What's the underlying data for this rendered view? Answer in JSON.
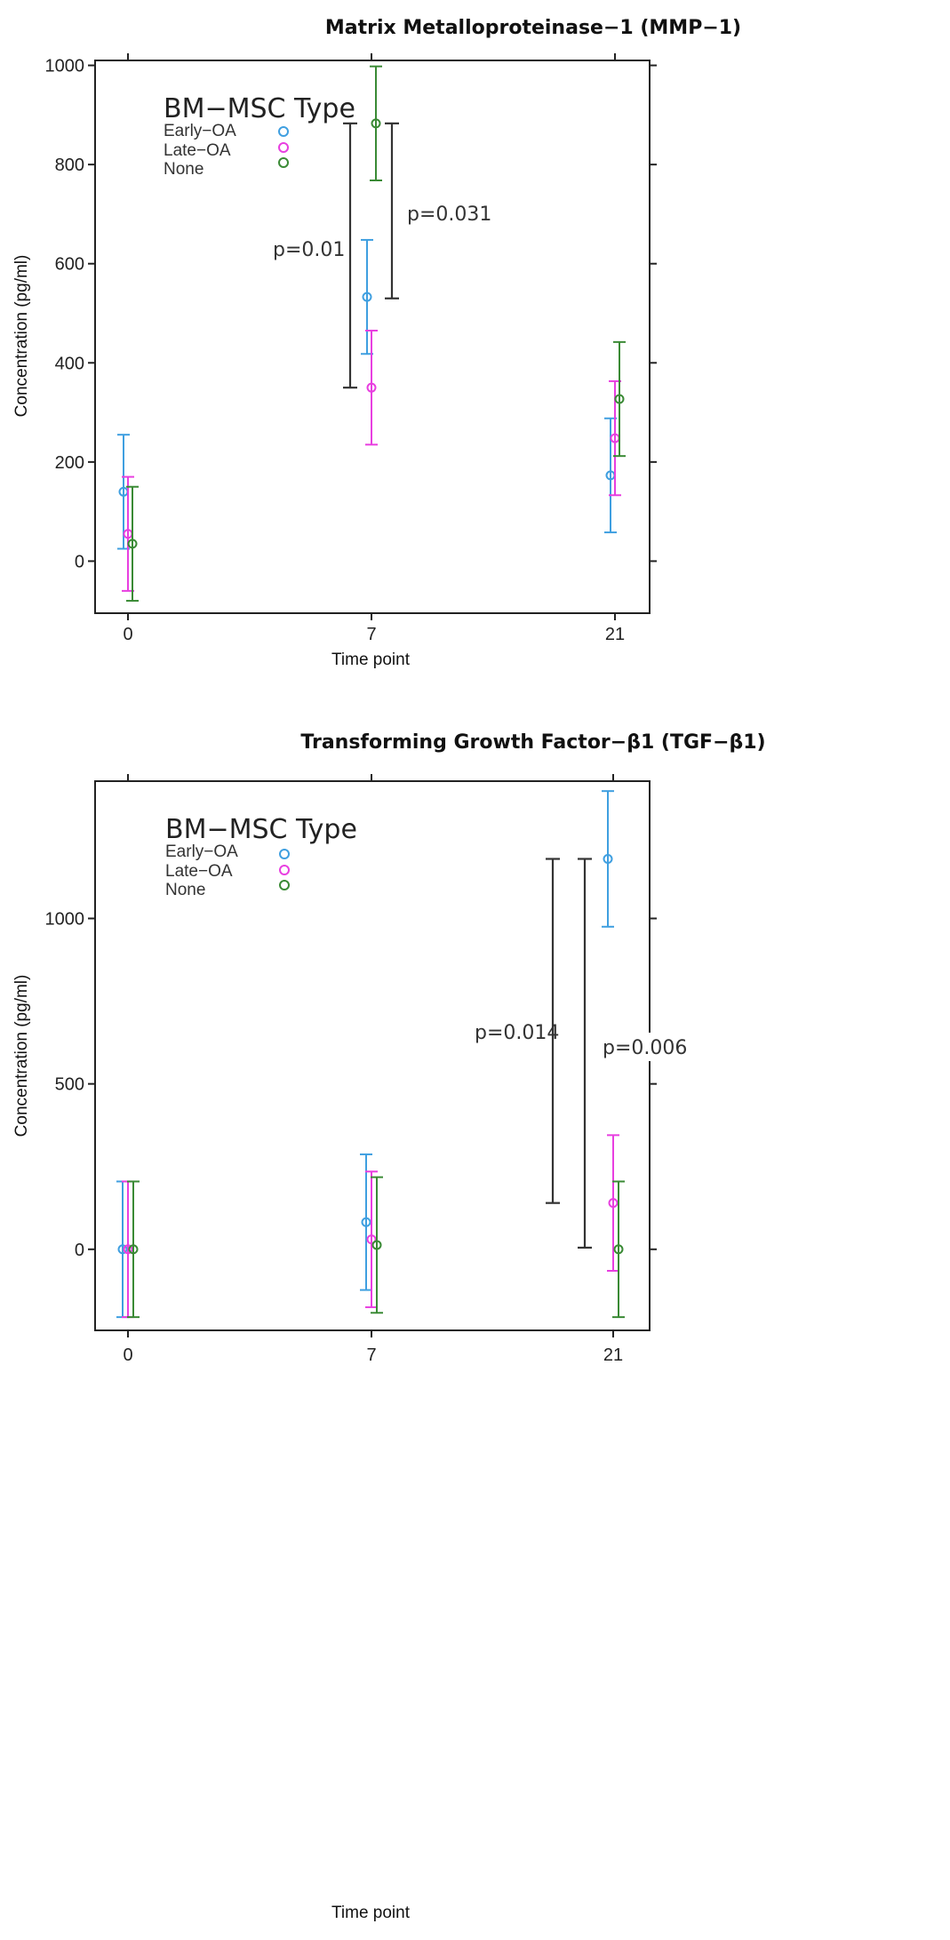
{
  "figure": {
    "x_axis_label": "Time point",
    "y_axis_label": "Concentration (pg/ml)"
  },
  "legend": {
    "title": "BM−MSC Type",
    "items": [
      {
        "label": "Early−OA",
        "color": "#3f9fe0"
      },
      {
        "label": "Late−OA",
        "color": "#e83fe0"
      },
      {
        "label": "None",
        "color": "#3a8a35"
      }
    ]
  },
  "chart_data": [
    {
      "type": "scatter",
      "title": "Matrix Metalloproteinase−1 (MMP−1)",
      "xlabel": "Time point",
      "ylabel": "Concentration (pg/ml)",
      "x_categories": [
        "0",
        "7",
        "21"
      ],
      "ylim": [
        -105,
        1010
      ],
      "yticks": [
        0,
        200,
        400,
        600,
        800,
        1000
      ],
      "series": [
        {
          "name": "Early−OA",
          "color": "#3f9fe0",
          "points": [
            {
              "x": "0",
              "mean": 140,
              "lo": 25,
              "hi": 255
            },
            {
              "x": "7",
              "mean": 533,
              "lo": 418,
              "hi": 648
            },
            {
              "x": "21",
              "mean": 173,
              "lo": 58,
              "hi": 288
            }
          ]
        },
        {
          "name": "Late−OA",
          "color": "#e83fe0",
          "points": [
            {
              "x": "0",
              "mean": 55,
              "lo": -60,
              "hi": 170
            },
            {
              "x": "7",
              "mean": 350,
              "lo": 235,
              "hi": 465
            },
            {
              "x": "21",
              "mean": 248,
              "lo": 133,
              "hi": 363
            }
          ]
        },
        {
          "name": "None",
          "color": "#3a8a35",
          "points": [
            {
              "x": "0",
              "mean": 35,
              "lo": -80,
              "hi": 150
            },
            {
              "x": "7",
              "mean": 883,
              "lo": 768,
              "hi": 998
            },
            {
              "x": "21",
              "mean": 327,
              "lo": 212,
              "hi": 442
            }
          ]
        }
      ],
      "comparisons": [
        {
          "label": "p=0.01",
          "x": "7",
          "lo": 350,
          "hi": 883
        },
        {
          "label": "p=0.031",
          "x": "7",
          "lo": 530,
          "hi": 883
        }
      ]
    },
    {
      "type": "scatter",
      "title": "Transforming Growth Factor−β1 (TGF−β1)",
      "xlabel": "Time point",
      "ylabel": "Concentration (pg/ml)",
      "x_categories": [
        "0",
        "7",
        "21"
      ],
      "ylim": [
        -245,
        1415
      ],
      "yticks": [
        0,
        500,
        1000
      ],
      "series": [
        {
          "name": "Early−OA",
          "color": "#3f9fe0",
          "points": [
            {
              "x": "0",
              "mean": 0,
              "lo": -205,
              "hi": 205
            },
            {
              "x": "7",
              "mean": 82,
              "lo": -123,
              "hi": 287
            },
            {
              "x": "21",
              "mean": 1180,
              "lo": 975,
              "hi": 1385
            }
          ]
        },
        {
          "name": "Late−OA",
          "color": "#e83fe0",
          "points": [
            {
              "x": "0",
              "mean": 0,
              "lo": -205,
              "hi": 205
            },
            {
              "x": "7",
              "mean": 30,
              "lo": -175,
              "hi": 235
            },
            {
              "x": "21",
              "mean": 140,
              "lo": -65,
              "hi": 345
            }
          ]
        },
        {
          "name": "None",
          "color": "#3a8a35",
          "points": [
            {
              "x": "0",
              "mean": 0,
              "lo": -205,
              "hi": 205
            },
            {
              "x": "7",
              "mean": 13,
              "lo": -192,
              "hi": 218
            },
            {
              "x": "21",
              "mean": 0,
              "lo": -205,
              "hi": 205
            }
          ]
        }
      ],
      "comparisons": [
        {
          "label": "p=0.014",
          "x": "21",
          "lo": 140,
          "hi": 1180
        },
        {
          "label": "p=0.006",
          "x": "21",
          "lo": 5,
          "hi": 1180
        }
      ]
    }
  ]
}
